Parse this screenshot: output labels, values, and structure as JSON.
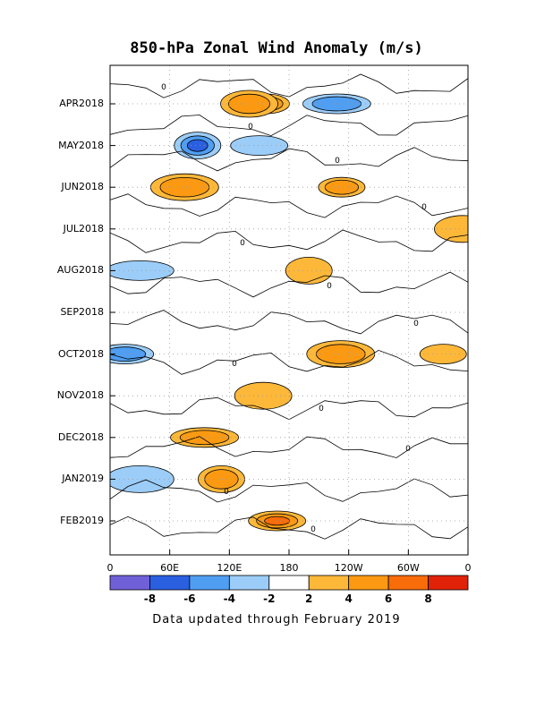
{
  "chart_data": {
    "type": "heatmap",
    "title": "850-hPa Zonal Wind Anomaly (m/s)",
    "y_tick_labels": [
      "APR2018",
      "MAY2018",
      "JUN2018",
      "JUL2018",
      "AUG2018",
      "SEP2018",
      "OCT2018",
      "NOV2018",
      "DEC2018",
      "JAN2019",
      "FEB2019"
    ],
    "x_tick_labels": [
      "0",
      "60E",
      "120E",
      "180",
      "120W",
      "60W",
      "0"
    ],
    "colorbar": {
      "tick_labels": [
        "-8",
        "-6",
        "-4",
        "-2",
        "2",
        "4",
        "6",
        "8"
      ],
      "colors": [
        "#7060d8",
        "#2a5fe0",
        "#4f9ef2",
        "#9ccdf8",
        "#ffffff",
        "#fdb83a",
        "#fb9a12",
        "#f86c0a",
        "#e02208"
      ]
    },
    "contour_label": "0",
    "anomaly_regions": [
      {
        "lon": 157,
        "month": "APR2018",
        "level": 6
      },
      {
        "lon": 140,
        "month": "APR2018",
        "level": 4
      },
      {
        "lon": 228,
        "month": "APR2018",
        "level": -4
      },
      {
        "lon": 88,
        "month": "MAY2018",
        "level": -6
      },
      {
        "lon": 150,
        "month": "MAY2018",
        "level": -2
      },
      {
        "lon": 75,
        "month": "JUN2018",
        "level": 4
      },
      {
        "lon": 233,
        "month": "JUN2018",
        "level": 4
      },
      {
        "lon": 355,
        "month": "JUL2018",
        "level": 2
      },
      {
        "lon": 30,
        "month": "AUG2018",
        "level": -2
      },
      {
        "lon": 200,
        "month": "AUG2018",
        "level": 2
      },
      {
        "lon": 15,
        "month": "OCT2018",
        "level": -4
      },
      {
        "lon": 232,
        "month": "OCT2018",
        "level": 4
      },
      {
        "lon": 335,
        "month": "OCT2018",
        "level": 2
      },
      {
        "lon": 154,
        "month": "NOV2018",
        "level": 2
      },
      {
        "lon": 95,
        "month": "DEC2018",
        "level": 4
      },
      {
        "lon": 112,
        "month": "JAN2019",
        "level": 4
      },
      {
        "lon": 168,
        "month": "FEB2019",
        "level": 6
      },
      {
        "lon": 30,
        "month": "JAN2019",
        "level": -2
      }
    ]
  },
  "footnote": "Data updated through February 2019"
}
